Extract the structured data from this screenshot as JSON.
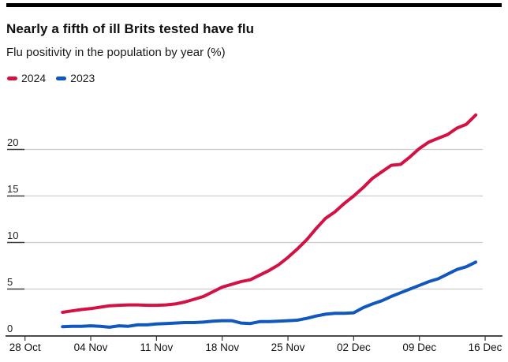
{
  "header": {
    "title": "Nearly a fifth of ill Brits tested have flu",
    "subtitle": "Flu positivity in the population by year (%)"
  },
  "legend": [
    {
      "label": "2024",
      "color": "#d31145"
    },
    {
      "label": "2023",
      "color": "#1157bd"
    }
  ],
  "chart_data": {
    "type": "line",
    "title": "Nearly a fifth of ill Brits tested have flu",
    "subtitle": "Flu positivity in the population by year (%)",
    "grid": "horizontal",
    "legend_position": "top-left",
    "x_axis": {
      "tick_labels": [
        "28 Oct",
        "04 Nov",
        "11 Nov",
        "18 Nov",
        "25 Nov",
        "02 Dec",
        "09 Dec",
        "16 Dec"
      ],
      "tick_interval_days": 7,
      "total_days": 49
    },
    "y_axis": {
      "ticks": [
        0,
        5,
        10,
        15,
        20
      ],
      "max": 24.5
    },
    "series_start_day_offset": 4,
    "dates": [
      "01 Nov",
      "02 Nov",
      "03 Nov",
      "04 Nov",
      "05 Nov",
      "06 Nov",
      "07 Nov",
      "08 Nov",
      "09 Nov",
      "10 Nov",
      "11 Nov",
      "12 Nov",
      "13 Nov",
      "14 Nov",
      "15 Nov",
      "16 Nov",
      "17 Nov",
      "18 Nov",
      "19 Nov",
      "20 Nov",
      "21 Nov",
      "22 Nov",
      "23 Nov",
      "24 Nov",
      "25 Nov",
      "26 Nov",
      "27 Nov",
      "28 Nov",
      "29 Nov",
      "30 Nov",
      "01 Dec",
      "02 Dec",
      "03 Dec",
      "04 Dec",
      "05 Dec",
      "06 Dec",
      "07 Dec",
      "08 Dec",
      "09 Dec",
      "10 Dec",
      "11 Dec",
      "12 Dec",
      "13 Dec",
      "14 Dec",
      "15 Dec"
    ],
    "series": [
      {
        "name": "2024",
        "color": "#d31145",
        "values": [
          2.5,
          2.65,
          2.8,
          2.9,
          3.05,
          3.2,
          3.25,
          3.3,
          3.3,
          3.25,
          3.25,
          3.3,
          3.4,
          3.6,
          3.9,
          4.2,
          4.7,
          5.2,
          5.5,
          5.8,
          6.0,
          6.5,
          7.0,
          7.6,
          8.4,
          9.3,
          10.3,
          11.5,
          12.6,
          13.3,
          14.2,
          15.0,
          15.9,
          16.9,
          17.6,
          18.3,
          18.4,
          19.2,
          20.1,
          20.8,
          21.2,
          21.6,
          22.3,
          22.7,
          23.7
        ]
      },
      {
        "name": "2023",
        "color": "#1157bd",
        "values": [
          0.95,
          1.0,
          1.0,
          1.05,
          1.0,
          0.9,
          1.05,
          1.0,
          1.15,
          1.15,
          1.25,
          1.3,
          1.35,
          1.4,
          1.4,
          1.45,
          1.55,
          1.6,
          1.6,
          1.35,
          1.3,
          1.5,
          1.5,
          1.55,
          1.6,
          1.65,
          1.85,
          2.1,
          2.3,
          2.4,
          2.4,
          2.45,
          3.0,
          3.4,
          3.75,
          4.2,
          4.6,
          5.0,
          5.4,
          5.8,
          6.1,
          6.6,
          7.1,
          7.4,
          7.9
        ]
      }
    ]
  }
}
